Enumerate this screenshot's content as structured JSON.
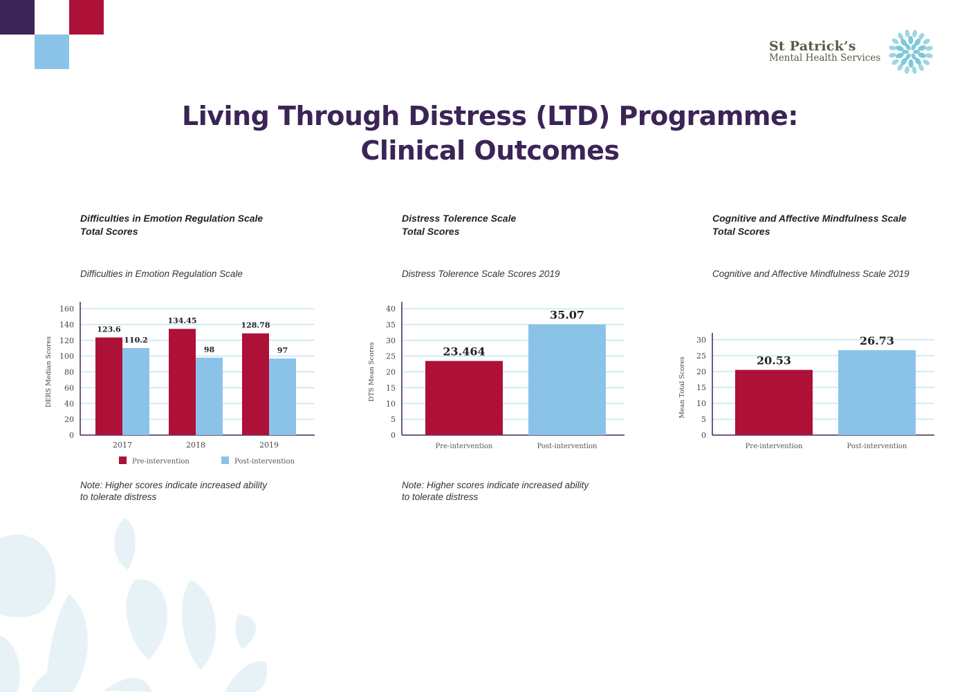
{
  "title": {
    "line1": "Living Through Distress (LTD) Programme:",
    "line2": "Clinical Outcomes"
  },
  "logo": {
    "name": "St Patrick’s",
    "subtitle": "Mental Health Services",
    "icon": "flower-icon"
  },
  "colors": {
    "purple": "#3b2456",
    "pre": "#ad1138",
    "post": "#8bc3e8",
    "grid": "#a6dcef"
  },
  "charts": [
    {
      "heading_line1": "Difficulties in Emotion Regulation Scale",
      "heading_line2": "Total Scores",
      "subtitle": "Difficulties in Emotion Regulation Scale",
      "note_line1": "Note: Higher scores indicate increased ability",
      "note_line2": "to tolerate distress"
    },
    {
      "heading_line1": "Distress Tolerence Scale",
      "heading_line2": "Total Scores",
      "subtitle": "Distress Tolerence Scale Scores 2019",
      "note_line1": "Note: Higher scores indicate increased ability",
      "note_line2": "to tolerate distress"
    },
    {
      "heading_line1": "Cognitive and Affective Mindfulness Scale",
      "heading_line2": "Total Scores",
      "subtitle": "Cognitive and Affective Mindfulness Scale 2019"
    }
  ],
  "chart_data": [
    {
      "type": "bar",
      "categories": [
        "2017",
        "2018",
        "2019"
      ],
      "series": [
        {
          "name": "Pre-intervention",
          "values": [
            123.6,
            134.45,
            128.78
          ]
        },
        {
          "name": "Post-intervention",
          "values": [
            110.2,
            98,
            97
          ]
        }
      ],
      "value_labels": [
        [
          "123.6",
          "134.45",
          "128.78"
        ],
        [
          "110.2",
          "98",
          "97"
        ]
      ],
      "ylabel": "DERS Median Scores",
      "ylim": [
        0,
        160
      ],
      "yticks": [
        0,
        20,
        40,
        60,
        80,
        100,
        120,
        140,
        160
      ],
      "grid": true,
      "legend": "bottom"
    },
    {
      "type": "bar",
      "categories": [
        "Pre-intervention",
        "Post-intervention"
      ],
      "values": [
        23.464,
        35.07
      ],
      "value_labels": [
        "23.464",
        "35.07"
      ],
      "ylabel": "DTS Mean Scores",
      "ylim": [
        0,
        40
      ],
      "yticks": [
        0,
        5,
        10,
        15,
        20,
        25,
        30,
        35,
        40
      ],
      "grid": true
    },
    {
      "type": "bar",
      "categories": [
        "Pre-intervention",
        "Post-intervention"
      ],
      "values": [
        20.53,
        26.73
      ],
      "value_labels": [
        "20.53",
        "26.73"
      ],
      "ylabel": "Mean Total Scores",
      "ylim": [
        0,
        30
      ],
      "yticks": [
        0,
        5,
        10,
        15,
        20,
        25,
        30
      ],
      "grid": true
    }
  ]
}
